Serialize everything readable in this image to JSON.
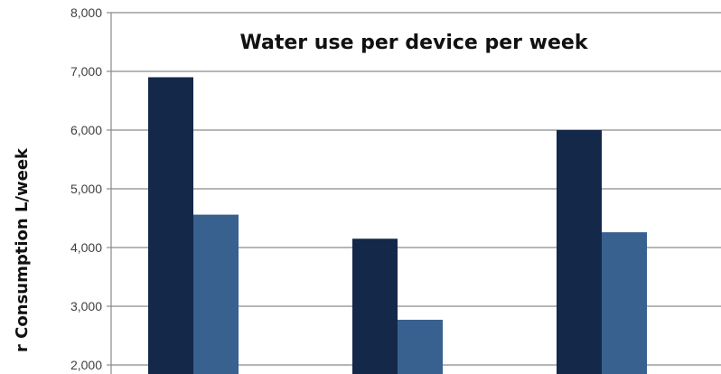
{
  "chart_data": {
    "type": "bar",
    "title": "Water use per device per week",
    "ylabel": "r Consumption  L/week",
    "xlabel": "",
    "ylim": [
      1800,
      8000
    ],
    "yticks": [
      2000,
      3000,
      4000,
      5000,
      6000,
      7000,
      8000
    ],
    "ytick_labels": [
      "2,000",
      "3,000",
      "4,000",
      "5,000",
      "6,000",
      "7,000",
      "8,000"
    ],
    "grid": true,
    "categories": [
      "",
      "",
      ""
    ],
    "series": [
      {
        "values": [
          6900,
          4150,
          6000
        ],
        "color": "#14284a"
      },
      {
        "values": [
          4560,
          2770,
          4260
        ],
        "color": "#38618f"
      }
    ]
  }
}
